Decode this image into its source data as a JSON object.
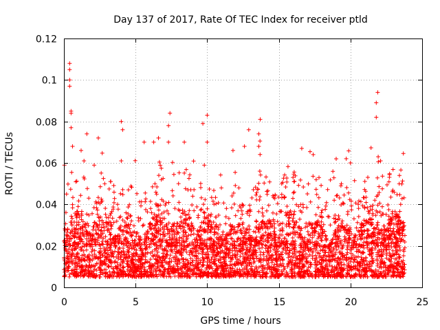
{
  "chart_data": {
    "type": "scatter",
    "title": "Day 137 of 2017, Rate Of TEC Index for receiver ptld",
    "xlabel": "GPS time / hours",
    "ylabel": "ROTI / TECUs",
    "xlim": [
      0,
      25
    ],
    "ylim": [
      0,
      0.12
    ],
    "x_ticks": [
      0,
      5,
      10,
      15,
      20,
      25
    ],
    "x_tick_labels": [
      "0",
      "5",
      "10",
      "15",
      "20",
      "25"
    ],
    "y_ticks": [
      0,
      0.02,
      0.04,
      0.06,
      0.08,
      0.1,
      0.12
    ],
    "y_tick_labels": [
      "0",
      "0.02",
      "0.04",
      "0.06",
      "0.08",
      "0.1",
      "0.12"
    ],
    "grid": true,
    "marker": "+",
    "series": [
      {
        "name": "ROTI",
        "color": "#ff0000",
        "x_range": [
          0,
          23.8
        ],
        "typical_band": [
          0.005,
          0.03
        ],
        "notable_points": [
          {
            "x": 0.4,
            "y": 0.108
          },
          {
            "x": 0.4,
            "y": 0.105
          },
          {
            "x": 0.4,
            "y": 0.1
          },
          {
            "x": 0.4,
            "y": 0.097
          },
          {
            "x": 0.5,
            "y": 0.085
          },
          {
            "x": 0.5,
            "y": 0.084
          },
          {
            "x": 0.5,
            "y": 0.077
          },
          {
            "x": 0.6,
            "y": 0.068
          },
          {
            "x": 1.2,
            "y": 0.066
          },
          {
            "x": 1.4,
            "y": 0.061
          },
          {
            "x": 1.6,
            "y": 0.074
          },
          {
            "x": 2.4,
            "y": 0.072
          },
          {
            "x": 4.0,
            "y": 0.08
          },
          {
            "x": 4.1,
            "y": 0.076
          },
          {
            "x": 4.0,
            "y": 0.061
          },
          {
            "x": 5.6,
            "y": 0.07
          },
          {
            "x": 6.6,
            "y": 0.072
          },
          {
            "x": 7.4,
            "y": 0.084
          },
          {
            "x": 7.3,
            "y": 0.078
          },
          {
            "x": 7.3,
            "y": 0.07
          },
          {
            "x": 8.4,
            "y": 0.07
          },
          {
            "x": 9.7,
            "y": 0.079
          },
          {
            "x": 10.0,
            "y": 0.083
          },
          {
            "x": 10.0,
            "y": 0.07
          },
          {
            "x": 11.8,
            "y": 0.066
          },
          {
            "x": 12.6,
            "y": 0.068
          },
          {
            "x": 12.9,
            "y": 0.076
          },
          {
            "x": 13.6,
            "y": 0.074
          },
          {
            "x": 13.7,
            "y": 0.081
          },
          {
            "x": 13.6,
            "y": 0.068
          },
          {
            "x": 16.6,
            "y": 0.067
          },
          {
            "x": 17.4,
            "y": 0.064
          },
          {
            "x": 19.0,
            "y": 0.062
          },
          {
            "x": 20.0,
            "y": 0.06
          },
          {
            "x": 21.8,
            "y": 0.082
          },
          {
            "x": 21.8,
            "y": 0.089
          },
          {
            "x": 21.9,
            "y": 0.094
          },
          {
            "x": 22.1,
            "y": 0.061
          },
          {
            "x": 23.4,
            "y": 0.05
          }
        ]
      }
    ]
  }
}
